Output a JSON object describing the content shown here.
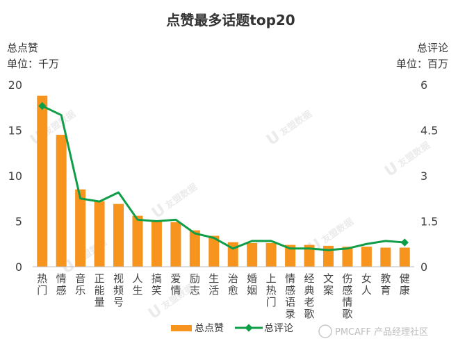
{
  "chart_data": {
    "type": "bar",
    "title": "点赞最多话题top20",
    "left_axis": {
      "title": "总点赞",
      "unit_label": "单位：千万",
      "ylim": [
        0,
        20
      ],
      "ticks": [
        "0",
        "5",
        "10",
        "15",
        "20"
      ]
    },
    "right_axis": {
      "title": "总评论",
      "unit_label": "单位：百万",
      "ylim": [
        0,
        6
      ],
      "ticks": [
        "0",
        "1.5",
        "3",
        "4.5",
        "6"
      ]
    },
    "categories": [
      "热门",
      "情感",
      "音乐",
      "正能量",
      "视频号",
      "人生",
      "搞笑",
      "爱情",
      "励志",
      "生活",
      "治愈",
      "婚姻",
      "上热门",
      "情感语录",
      "经典老歌",
      "文案",
      "伤感情歌",
      "女人",
      "教育",
      "健康"
    ],
    "series": [
      {
        "name": "总点赞",
        "type": "bar",
        "axis": "left",
        "color": "#f7941d",
        "values": [
          18.8,
          14.5,
          8.5,
          7.2,
          6.9,
          5.6,
          5.1,
          4.9,
          4.0,
          3.4,
          2.7,
          2.6,
          2.6,
          2.4,
          2.4,
          2.3,
          2.2,
          2.2,
          2.1,
          2.1
        ]
      },
      {
        "name": "总评论",
        "type": "line",
        "axis": "right",
        "color": "#0f9e47",
        "values": [
          5.3,
          5.0,
          2.25,
          2.15,
          2.45,
          1.55,
          1.5,
          1.55,
          1.1,
          0.95,
          0.6,
          0.85,
          0.85,
          0.6,
          0.6,
          0.55,
          0.6,
          0.75,
          0.85,
          0.8
        ]
      }
    ],
    "legend": {
      "position": "bottom"
    },
    "grid": false
  },
  "watermark": {
    "brand": "友盟数据",
    "text": "PMCAFF 产品经理社区"
  }
}
